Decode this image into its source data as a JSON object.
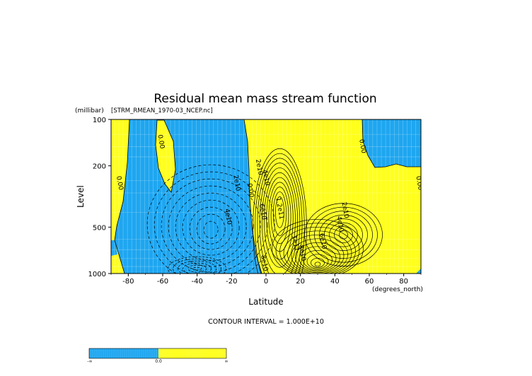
{
  "colors": {
    "negative": "#1ea6f0",
    "positive": "#ffff1e",
    "contour": "#000000"
  },
  "chart_data": {
    "type": "contour",
    "title": "Residual mean mass stream function",
    "subtitle": "[STRM_RMEAN_1970-03_NCEP.nc]",
    "xlabel": "Latitude",
    "xunits": "(degrees_north)",
    "ylabel": "Level",
    "yunits": "(millibar)",
    "xlim": [
      -90,
      90
    ],
    "ylim": [
      1000,
      100
    ],
    "yscale": "log",
    "x_ticks": [
      -80,
      -60,
      -40,
      -20,
      0,
      20,
      40,
      60,
      80
    ],
    "y_ticks": [
      100,
      200,
      500,
      1000
    ],
    "grid": true,
    "contour_interval_text": "CONTOUR INTERVAL = 1.000E+10",
    "contour_labels": [
      {
        "text": "0.00",
        "lat": -62,
        "p": 140
      },
      {
        "text": "0.00",
        "lat": -86,
        "p": 260
      },
      {
        "text": "2e10",
        "lat": -18,
        "p": 260
      },
      {
        "text": "4e10",
        "lat": -23,
        "p": 430
      },
      {
        "text": "0.00",
        "lat": -10,
        "p": 290
      },
      {
        "text": "2e10",
        "lat": -5,
        "p": 205
      },
      {
        "text": "4e10",
        "lat": -1,
        "p": 240
      },
      {
        "text": "6e10",
        "lat": -3,
        "p": 400
      },
      {
        "text": "1.2e11",
        "lat": 7,
        "p": 380
      },
      {
        "text": "2e10",
        "lat": 45,
        "p": 390
      },
      {
        "text": "4e10",
        "lat": 42,
        "p": 480
      },
      {
        "text": "6e10",
        "lat": 32,
        "p": 620
      },
      {
        "text": "1e11",
        "lat": 16,
        "p": 640
      },
      {
        "text": "8e10",
        "lat": 20,
        "p": 740
      },
      {
        "text": "8e10",
        "lat": -2,
        "p": 860
      },
      {
        "text": "0.00",
        "lat": 55,
        "p": 150
      },
      {
        "text": "0.00",
        "lat": 88,
        "p": 260
      }
    ],
    "colorbar": {
      "labels": [
        "-∞",
        "0.0",
        "∞"
      ]
    }
  }
}
